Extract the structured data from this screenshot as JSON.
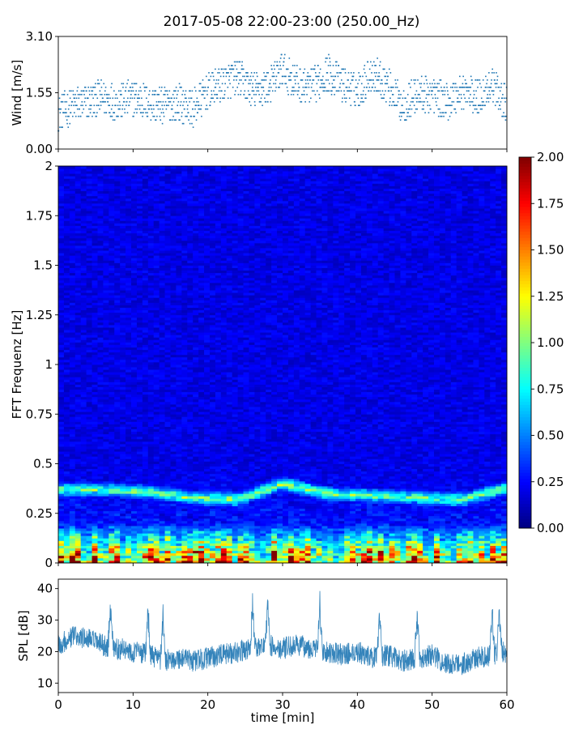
{
  "title": "2017-05-08 22:00-23:00 (250.00_Hz)",
  "chart_data": [
    {
      "type": "scatter",
      "name_panel": "wind",
      "ylabel": "Wind [m/s]",
      "ylim": [
        0,
        3.1
      ],
      "yticks": [
        "0.00",
        "1.55",
        "3.10"
      ],
      "xlim": [
        0,
        60
      ],
      "marker_color": "#1f77b4",
      "x": [
        0,
        2,
        4,
        6,
        8,
        10,
        12,
        14,
        16,
        18,
        20,
        22,
        24,
        26,
        28,
        30,
        32,
        34,
        36,
        38,
        40,
        42,
        44,
        46,
        48,
        50,
        52,
        54,
        56,
        58,
        60
      ],
      "y": [
        1.0,
        1.2,
        1.3,
        1.4,
        1.3,
        1.4,
        1.3,
        1.2,
        1.3,
        1.1,
        1.6,
        1.8,
        2.0,
        1.6,
        1.7,
        2.2,
        1.8,
        1.7,
        2.1,
        1.8,
        1.6,
        2.1,
        1.8,
        1.2,
        1.5,
        1.5,
        1.3,
        1.6,
        1.4,
        1.8,
        1.2
      ]
    },
    {
      "type": "heatmap",
      "name_panel": "spectrogram",
      "ylabel": "FFT Frequenz [Hz]",
      "yticks": [
        "0",
        "0.25",
        "0.5",
        "0.75",
        "1",
        "1.25",
        "1.5",
        "1.75",
        "2"
      ],
      "ylim": [
        0,
        2
      ],
      "xlim": [
        0,
        60
      ],
      "colormap": "jet",
      "clim": [
        0,
        2.0
      ],
      "colorbar_ticks": [
        "0.00",
        "0.25",
        "0.50",
        "0.75",
        "1.00",
        "1.25",
        "1.50",
        "1.75",
        "2.00"
      ],
      "peak_line_hz": [
        0.37,
        0.37,
        0.36,
        0.33,
        0.32,
        0.4,
        0.35,
        0.34,
        0.33,
        0.32,
        0.38
      ]
    },
    {
      "type": "line",
      "name_panel": "spl",
      "ylabel": "SPL [dB]",
      "xlabel": "time [min]",
      "ylim": [
        7,
        43
      ],
      "yticks": [
        "10",
        "20",
        "30",
        "40"
      ],
      "xlim": [
        0,
        60
      ],
      "xticks": [
        "0",
        "10",
        "20",
        "30",
        "40",
        "50",
        "60"
      ],
      "line_color": "#1f77b4",
      "x": [
        0,
        2,
        4,
        6,
        8,
        10,
        12,
        14,
        16,
        18,
        20,
        22,
        24,
        26,
        28,
        30,
        32,
        34,
        36,
        38,
        40,
        42,
        44,
        46,
        48,
        50,
        52,
        54,
        56,
        58,
        60
      ],
      "y": [
        22,
        25,
        24,
        22,
        21,
        20,
        19,
        17,
        18,
        17,
        18,
        19,
        20,
        21,
        22,
        21,
        22,
        21,
        20,
        19,
        20,
        18,
        19,
        17,
        18,
        19,
        16,
        16,
        18,
        19,
        20
      ]
    }
  ]
}
